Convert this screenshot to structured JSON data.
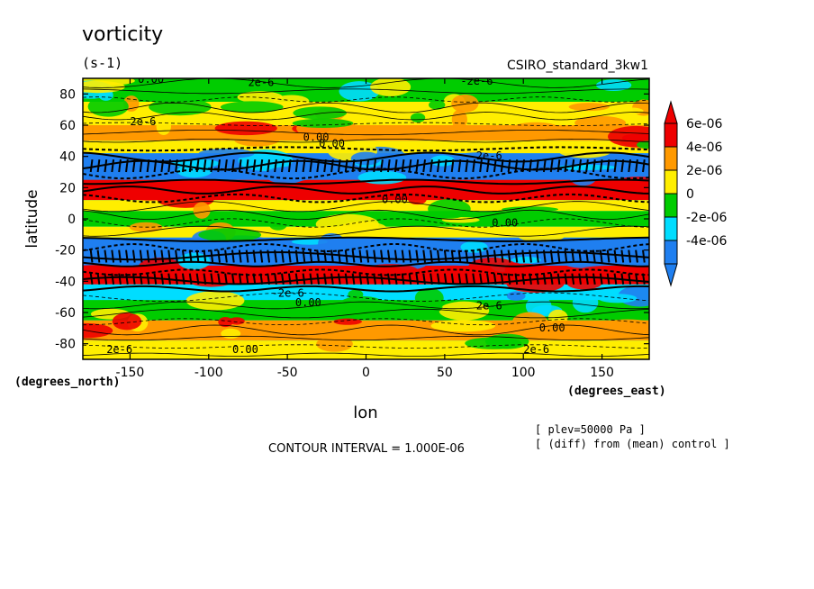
{
  "chart_data": {
    "type": "heatmap",
    "title": "vorticity",
    "units": "(s-1)",
    "model": "CSIRO_standard_3kw1",
    "xlabel": "lon",
    "ylabel": "latitude",
    "x_units": "(degrees_east)",
    "y_units": "(degrees_north)",
    "xlim": [
      -180,
      180
    ],
    "ylim": [
      -90,
      90
    ],
    "x_ticks": [
      -150,
      -100,
      -50,
      0,
      50,
      100,
      150
    ],
    "y_ticks": [
      -80,
      -60,
      -40,
      -20,
      0,
      20,
      40,
      60,
      80
    ],
    "x_tick_labels": [
      "-150",
      "-100",
      "-50",
      "0",
      "50",
      "100",
      "150"
    ],
    "y_tick_labels": [
      "-80",
      "-60",
      "-40",
      "-20",
      "0",
      "20",
      "40",
      "60",
      "80"
    ],
    "colorbar": {
      "labels": [
        "6e-06",
        "4e-06",
        "2e-06",
        "0",
        "-2e-06",
        "-4e-06"
      ],
      "levels": [
        6e-06,
        4e-06,
        2e-06,
        0,
        -2e-06,
        -4e-06
      ],
      "colors": [
        "#ee0000",
        "#ff9900",
        "#ffee00",
        "#00cc00",
        "#00ddff",
        "#1f7ff0"
      ],
      "extend_top_color": "#ee0000",
      "extend_bottom_color": "#1f7ff0"
    },
    "latitude_bands": [
      {
        "lat": [
          75,
          90
        ],
        "value": -2e-06
      },
      {
        "lat": [
          60,
          75
        ],
        "value": 1e-06
      },
      {
        "lat": [
          50,
          60
        ],
        "value": 3e-06
      },
      {
        "lat": [
          42,
          50
        ],
        "value": 1e-06
      },
      {
        "lat": [
          25,
          42
        ],
        "value": -5e-06
      },
      {
        "lat": [
          12,
          25
        ],
        "value": 7e-06
      },
      {
        "lat": [
          5,
          12
        ],
        "value": 1e-06
      },
      {
        "lat": [
          -5,
          5
        ],
        "value": -1e-06
      },
      {
        "lat": [
          -12,
          -5
        ],
        "value": 1e-06
      },
      {
        "lat": [
          -30,
          -12
        ],
        "value": -5e-06
      },
      {
        "lat": [
          -42,
          -30
        ],
        "value": 7e-06
      },
      {
        "lat": [
          -52,
          -42
        ],
        "value": -3e-06
      },
      {
        "lat": [
          -65,
          -52
        ],
        "value": -1e-06
      },
      {
        "lat": [
          -78,
          -65
        ],
        "value": 2e-06
      },
      {
        "lat": [
          -90,
          -78
        ],
        "value": 1e-06
      }
    ],
    "contour_labels": [
      "0.00",
      "2e-6",
      "-2e-6",
      "2e-6",
      "0.00",
      "0.00",
      "2e-6",
      "0.00",
      "0.00",
      "-2e-6",
      "0.00",
      "2e-6",
      "0.00",
      "2e-6",
      "0.00",
      "2e-6"
    ],
    "contour_interval_text": "CONTOUR INTERVAL = 1.000E-06",
    "notes": [
      "[ plev=50000 Pa ]",
      "[ (diff) from (mean) control ]"
    ],
    "grid": false,
    "legend": "right"
  }
}
